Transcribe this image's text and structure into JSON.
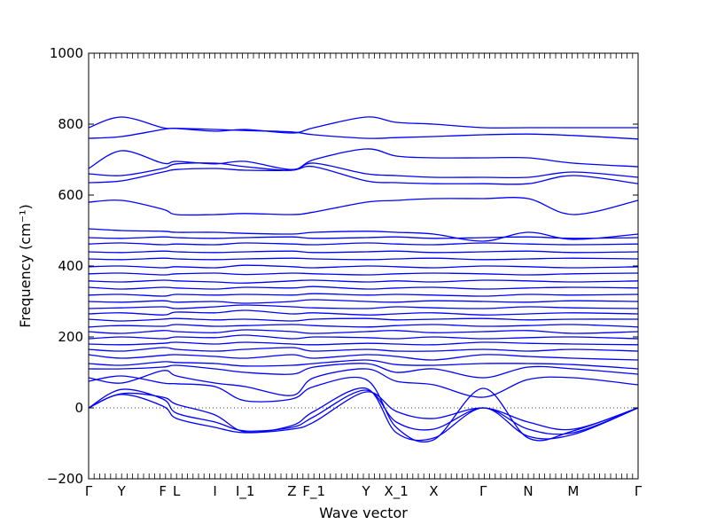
{
  "chart_data": {
    "type": "line",
    "title": "",
    "xlabel": "Wave vector",
    "ylabel": "Frequency (cm⁻¹)",
    "ylim": [
      -200,
      1000
    ],
    "yticks": [
      -200,
      0,
      200,
      400,
      600,
      800,
      1000
    ],
    "y_tick_labels": [
      "−200",
      "0",
      "200",
      "400",
      "600",
      "800",
      "1000"
    ],
    "x_tick_labels": [
      "Γ",
      "Y",
      "F",
      "L",
      "I",
      "I_1",
      "Z",
      "F_1",
      "Y",
      "X_1",
      "X",
      "Γ",
      "N",
      "M",
      "Γ"
    ],
    "x_tick_positions": [
      0.0,
      0.06,
      0.135,
      0.16,
      0.23,
      0.285,
      0.37,
      0.41,
      0.505,
      0.56,
      0.628,
      0.718,
      0.8,
      0.882,
      1.0
    ],
    "zero_line": "dotted",
    "series_color": "#0000ff",
    "band_anchor_x": [
      0.0,
      0.06,
      0.135,
      0.16,
      0.23,
      0.285,
      0.37,
      0.41,
      0.505,
      0.56,
      0.628,
      0.718,
      0.8,
      0.882,
      1.0
    ],
    "series": [
      {
        "values": [
          0,
          38,
          5,
          -30,
          -55,
          -70,
          -60,
          -40,
          45,
          -10,
          -30,
          0,
          -40,
          -60,
          0
        ]
      },
      {
        "values": [
          0,
          52,
          25,
          -15,
          -40,
          -65,
          -55,
          -25,
          50,
          -40,
          -60,
          0,
          -60,
          -70,
          0
        ]
      },
      {
        "values": [
          0,
          40,
          30,
          10,
          -20,
          -68,
          -50,
          -10,
          55,
          -70,
          -85,
          0,
          -80,
          -75,
          0
        ]
      },
      {
        "values": [
          75,
          90,
          70,
          68,
          60,
          20,
          25,
          60,
          80,
          -55,
          -90,
          55,
          -85,
          -65,
          0
        ]
      },
      {
        "values": [
          85,
          70,
          105,
          90,
          70,
          60,
          35,
          85,
          110,
          75,
          65,
          30,
          80,
          85,
          65
        ]
      },
      {
        "values": [
          110,
          110,
          115,
          120,
          110,
          100,
          95,
          115,
          125,
          100,
          110,
          85,
          115,
          110,
          95
        ]
      },
      {
        "values": [
          125,
          120,
          130,
          128,
          125,
          118,
          120,
          125,
          135,
          122,
          120,
          125,
          125,
          122,
          110
        ]
      },
      {
        "values": [
          150,
          140,
          148,
          150,
          145,
          140,
          150,
          140,
          150,
          145,
          135,
          150,
          145,
          140,
          135
        ]
      },
      {
        "values": [
          165,
          160,
          170,
          165,
          160,
          165,
          170,
          160,
          165,
          160,
          160,
          165,
          160,
          165,
          160
        ]
      },
      {
        "values": [
          180,
          178,
          182,
          185,
          180,
          185,
          180,
          178,
          182,
          180,
          178,
          185,
          182,
          180,
          178
        ]
      },
      {
        "values": [
          195,
          200,
          195,
          200,
          198,
          205,
          195,
          200,
          198,
          195,
          200,
          195,
          198,
          200,
          195
        ]
      },
      {
        "values": [
          215,
          210,
          218,
          215,
          212,
          220,
          215,
          210,
          215,
          218,
          212,
          215,
          218,
          210,
          215
        ]
      },
      {
        "values": [
          228,
          232,
          230,
          235,
          230,
          232,
          235,
          232,
          228,
          232,
          235,
          230,
          232,
          235,
          228
        ]
      },
      {
        "values": [
          250,
          245,
          250,
          252,
          248,
          250,
          245,
          250,
          252,
          248,
          250,
          252,
          248,
          250,
          250
        ]
      },
      {
        "values": [
          265,
          268,
          262,
          270,
          268,
          275,
          265,
          268,
          262,
          265,
          268,
          262,
          265,
          268,
          265
        ]
      },
      {
        "values": [
          280,
          282,
          285,
          280,
          285,
          290,
          285,
          282,
          280,
          285,
          282,
          280,
          285,
          282,
          280
        ]
      },
      {
        "values": [
          300,
          298,
          302,
          298,
          300,
          295,
          300,
          305,
          300,
          298,
          302,
          300,
          298,
          302,
          300
        ]
      },
      {
        "values": [
          318,
          320,
          315,
          320,
          318,
          320,
          318,
          322,
          318,
          320,
          318,
          315,
          320,
          318,
          320
        ]
      },
      {
        "values": [
          340,
          335,
          340,
          338,
          335,
          340,
          338,
          342,
          335,
          338,
          340,
          335,
          338,
          340,
          338
        ]
      },
      {
        "values": [
          358,
          355,
          360,
          358,
          355,
          352,
          358,
          360,
          355,
          358,
          355,
          360,
          358,
          355,
          358
        ]
      },
      {
        "values": [
          378,
          380,
          375,
          378,
          380,
          376,
          380,
          378,
          375,
          378,
          380,
          378,
          375,
          378,
          380
        ]
      },
      {
        "values": [
          398,
          400,
          395,
          398,
          395,
          402,
          398,
          395,
          400,
          398,
          395,
          400,
          398,
          395,
          398
        ]
      },
      {
        "values": [
          420,
          418,
          422,
          420,
          418,
          420,
          422,
          420,
          418,
          420,
          422,
          418,
          420,
          422,
          420
        ]
      },
      {
        "values": [
          440,
          438,
          442,
          440,
          438,
          440,
          442,
          438,
          440,
          442,
          438,
          440,
          442,
          438,
          440
        ]
      },
      {
        "values": [
          462,
          465,
          460,
          462,
          460,
          465,
          462,
          460,
          465,
          462,
          460,
          465,
          462,
          460,
          462
        ]
      },
      {
        "values": [
          480,
          478,
          482,
          480,
          478,
          480,
          482,
          478,
          480,
          482,
          478,
          480,
          482,
          478,
          480
        ]
      },
      {
        "values": [
          505,
          500,
          498,
          495,
          495,
          492,
          490,
          495,
          498,
          495,
          490,
          470,
          495,
          475,
          490
        ]
      },
      {
        "values": [
          580,
          585,
          560,
          545,
          545,
          548,
          545,
          552,
          580,
          585,
          590,
          590,
          590,
          545,
          585
        ]
      },
      {
        "values": [
          635,
          640,
          665,
          672,
          675,
          670,
          670,
          680,
          640,
          635,
          632,
          632,
          632,
          655,
          632
        ]
      },
      {
        "values": [
          660,
          655,
          675,
          688,
          690,
          680,
          670,
          690,
          660,
          655,
          650,
          650,
          650,
          665,
          650
        ]
      },
      {
        "values": [
          675,
          725,
          690,
          695,
          688,
          695,
          672,
          700,
          730,
          710,
          705,
          705,
          705,
          690,
          680
        ]
      },
      {
        "values": [
          760,
          765,
          785,
          788,
          785,
          782,
          778,
          770,
          760,
          762,
          765,
          770,
          772,
          768,
          758
        ]
      },
      {
        "values": [
          790,
          820,
          790,
          788,
          780,
          785,
          775,
          790,
          820,
          805,
          800,
          790,
          790,
          790,
          790
        ]
      }
    ]
  }
}
